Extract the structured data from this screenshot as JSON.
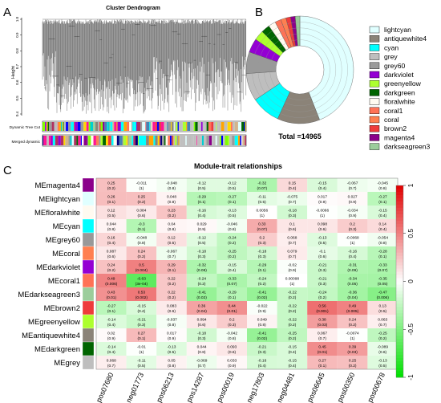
{
  "panels": {
    "a": "A",
    "b": "B",
    "c": "C"
  },
  "dendrogram": {
    "title": "Cluster Dendrogram",
    "ylabel": "Height",
    "yticks": [
      "1.0",
      "0.9",
      "0.8",
      "0.7",
      "0.6",
      "0.5",
      "0.4"
    ],
    "row_labels": [
      "Dynamic Tree Cut",
      "Merged dynamic"
    ]
  },
  "donut": {
    "total_label": "Total =14965",
    "legend": [
      {
        "name": "lightcyan",
        "color": "#e0ffff"
      },
      {
        "name": "antiquewhite4",
        "color": "#8b8378"
      },
      {
        "name": "cyan",
        "color": "#00ffff"
      },
      {
        "name": "grey",
        "color": "#bebebe"
      },
      {
        "name": "grey60",
        "color": "#999999"
      },
      {
        "name": "darkviolet",
        "color": "#9400d3"
      },
      {
        "name": "greenyellow",
        "color": "#adff2f"
      },
      {
        "name": "darkgreen",
        "color": "#006400"
      },
      {
        "name": "floralwhite",
        "color": "#fffaf0"
      },
      {
        "name": "coral1",
        "color": "#ff7256"
      },
      {
        "name": "coral",
        "color": "#ff7f50"
      },
      {
        "name": "brown2",
        "color": "#ee3b3b"
      },
      {
        "name": "magenta4",
        "color": "#8b008b"
      },
      {
        "name": "darkseagreen3",
        "color": "#9bcd9b"
      }
    ]
  },
  "chart_data": {
    "type": "heatmap",
    "title": "Module-trait relationships",
    "rows": [
      {
        "name": "MEmagenta4",
        "color": "#8b008b"
      },
      {
        "name": "MElightcyan",
        "color": "#e0ffff"
      },
      {
        "name": "MEfloralwhite",
        "color": "#fffaf0"
      },
      {
        "name": "MEcyan",
        "color": "#00ffff"
      },
      {
        "name": "MEgrey60",
        "color": "#999999"
      },
      {
        "name": "MEcoral",
        "color": "#ff7f50"
      },
      {
        "name": "MEdarkviolet",
        "color": "#9400d3"
      },
      {
        "name": "MEcoral1",
        "color": "#ff7256"
      },
      {
        "name": "MEdarkseagreen3",
        "color": "#9bcd9b"
      },
      {
        "name": "MEbrown2",
        "color": "#ee3b3b"
      },
      {
        "name": "MEgreenyellow",
        "color": "#adff2f"
      },
      {
        "name": "MEantiquewhite4",
        "color": "#8b8378"
      },
      {
        "name": "MEdarkgreen",
        "color": "#006400"
      },
      {
        "name": "MEgrey",
        "color": "#bebebe"
      }
    ],
    "columns": [
      "pos07680",
      "neg01773",
      "pos06213",
      "pos14287",
      "pos00019",
      "neg17803",
      "neg04481",
      "pos06645",
      "pos00350",
      "pos00678"
    ],
    "values": [
      [
        0.25,
        -0.011,
        -0.048,
        -0.12,
        -0.12,
        -0.32,
        0.15,
        -0.15,
        -0.067,
        -0.045
      ],
      [
        0.26,
        0.25,
        0.048,
        -0.29,
        -0.27,
        -0.11,
        -0.075,
        0.017,
        0.027,
        -0.27
      ],
      [
        0.12,
        0.084,
        0.23,
        -0.16,
        -0.13,
        0.0056,
        -0.18,
        -0.0066,
        -0.034,
        -0.15
      ],
      [
        0.044,
        -0.3,
        0.04,
        0.029,
        -0.046,
        0.33,
        0.1,
        0.098,
        0.2,
        0.14
      ],
      [
        0.16,
        -0.048,
        0.12,
        -0.12,
        -0.24,
        0.2,
        0.068,
        -0.13,
        -0.0068,
        -0.054
      ],
      [
        0.087,
        0.24,
        -0.067,
        -0.18,
        -0.25,
        -0.18,
        0.079,
        -0.1,
        -0.16,
        -0.28
      ],
      [
        0.24,
        0.5,
        0.29,
        -0.32,
        -0.15,
        -0.29,
        -0.02,
        -0.21,
        -0.31,
        -0.33
      ],
      [
        0.49,
        -0.63,
        0.22,
        -0.24,
        -0.33,
        -0.24,
        0.00098,
        -0.21,
        -0.34,
        -0.35
      ],
      [
        0.43,
        0.53,
        0.22,
        -0.41,
        -0.29,
        -0.41,
        -0.22,
        -0.24,
        -0.36,
        -0.47
      ],
      [
        -0.27,
        -0.15,
        0.083,
        0.36,
        0.44,
        -0.022,
        -0.22,
        0.56,
        0.49,
        0.13
      ],
      [
        -0.14,
        -0.21,
        -0.037,
        0.094,
        0.2,
        0.049,
        -0.22,
        0.38,
        0.24,
        0.063
      ],
      [
        0.02,
        0.27,
        0.017,
        -0.18,
        -0.042,
        -0.41,
        -0.25,
        0.067,
        -0.0074,
        -0.25
      ],
      [
        -0.14,
        -0.01,
        -0.13,
        0.044,
        0.093,
        -0.21,
        -0.15,
        0.45,
        0.39,
        -0.089
      ],
      [
        0.068,
        -0.11,
        0.05,
        -0.069,
        0.033,
        -0.16,
        -0.15,
        0.27,
        0.25,
        -0.13
      ]
    ],
    "pvalues": [
      [
        "(0.2)",
        "(1)",
        "(0.8)",
        "(0.5)",
        "(0.5)",
        "(0.07)",
        "(0.4)",
        "(0.4)",
        "(0.7)",
        "(0.8)"
      ],
      [
        "(0.1)",
        "(0.2)",
        "(0.8)",
        "(0.1)",
        "(0.1)",
        "(0.5)",
        "(0.7)",
        "(0.9)",
        "(0.9)",
        "(0.1)"
      ],
      [
        "(0.5)",
        "(0.6)",
        "(0.2)",
        "(0.4)",
        "(0.5)",
        "(1)",
        "(0.3)",
        "(1)",
        "(0.9)",
        "(0.4)"
      ],
      [
        "(0.8)",
        "(0.1)",
        "(0.8)",
        "(0.9)",
        "(0.8)",
        "(0.07)",
        "(0.6)",
        "(0.6)",
        "(0.3)",
        "(0.4)"
      ],
      [
        "(0.4)",
        "(0.8)",
        "(0.5)",
        "(0.5)",
        "(0.2)",
        "(0.3)",
        "(0.7)",
        "(0.5)",
        "(1)",
        "(0.8)"
      ],
      [
        "(0.6)",
        "(0.2)",
        "(0.7)",
        "(0.3)",
        "(0.2)",
        "(0.3)",
        "(0.7)",
        "(0.6)",
        "(0.4)",
        "(0.1)"
      ],
      [
        "(0.2)",
        "(0.004)",
        "(0.1)",
        "(0.08)",
        "(0.4)",
        "(0.1)",
        "(0.9)",
        "(0.3)",
        "(0.09)",
        "(0.07)"
      ],
      [
        "(0.006)",
        "(3e-04)",
        "(0.2)",
        "(0.2)",
        "(0.07)",
        "(0.2)",
        "(1)",
        "(0.3)",
        "(0.05)",
        "(0.05)"
      ],
      [
        "(0.01)",
        "(0.002)",
        "(0.2)",
        "(0.02)",
        "(0.1)",
        "(0.02)",
        "(0.2)",
        "(0.2)",
        "(0.04)",
        "(0.006)"
      ],
      [
        "(0.1)",
        "(0.4)",
        "(0.6)",
        "(0.04)",
        "(0.01)",
        "(0.9)",
        "(0.2)",
        "(0.001)",
        "(0.005)",
        "(0.5)"
      ],
      [
        "(0.4)",
        "(0.3)",
        "(0.8)",
        "(0.6)",
        "(0.3)",
        "(0.8)",
        "(0.2)",
        "(0.03)",
        "(0.2)",
        "(0.7)"
      ],
      [
        "(0.9)",
        "(0.1)",
        "(0.9)",
        "(0.3)",
        "(0.8)",
        "(0.02)",
        "(0.2)",
        "(0.7)",
        "(1)",
        "(0.2)"
      ],
      [
        "(0.4)",
        "(1)",
        "(0.5)",
        "(0.8)",
        "(0.6)",
        "(0.3)",
        "(0.4)",
        "(0.01)",
        "(0.03)",
        "(0.6)"
      ],
      [
        "(0.7)",
        "(0.5)",
        "(0.8)",
        "(0.7)",
        "(0.9)",
        "(0.4)",
        "(0.4)",
        "(0.1)",
        "(0.2)",
        "(0.5)"
      ]
    ],
    "scale": {
      "min": -1,
      "max": 1,
      "ticks": [
        "1",
        "0.5",
        "0",
        "-0.5",
        "-1"
      ],
      "colors": {
        "low": "#00e000",
        "mid": "#ffffff",
        "high": "#e00000"
      }
    }
  }
}
